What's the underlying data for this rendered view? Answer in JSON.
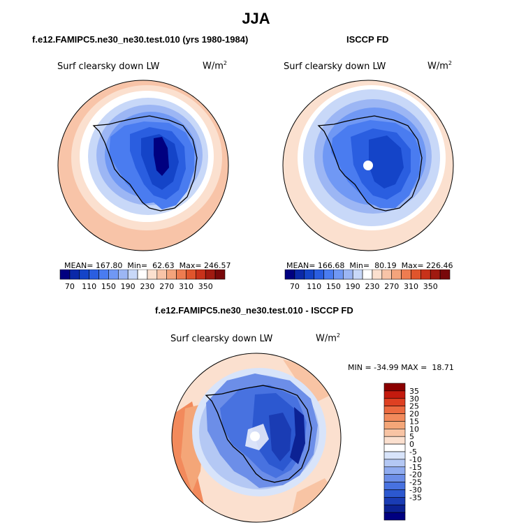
{
  "title": "JJA",
  "panels": [
    {
      "title": "f.e12.FAMIPC5.ne30_ne30.test.010 (yrs 1980-1984)",
      "variable": "Surf clearsky down LW",
      "units_base": "W/m",
      "units_exp": "2",
      "stats": "MEAN= 167.80  Min=  62.63  Max= 246.57",
      "pole_hole": false
    },
    {
      "title": "ISCCP FD",
      "variable": "Surf clearsky down LW",
      "units_base": "W/m",
      "units_exp": "2",
      "stats": "MEAN= 166.68  Min=  80.19  Max= 226.46",
      "pole_hole": true
    },
    {
      "title": "f.e12.FAMIPC5.ne30_ne30.test.010 - ISCCP FD",
      "variable": "Surf clearsky down LW",
      "units_base": "W/m",
      "units_exp": "2",
      "stats": "MIN = -34.99 MAX =  18.71",
      "pole_hole": true
    }
  ],
  "colorbar_abs": {
    "colors": [
      "#000080",
      "#0a28a8",
      "#1444c8",
      "#2a5ee0",
      "#4a7cf0",
      "#7098f4",
      "#9cb6f4",
      "#c8d8f8",
      "#ffffff",
      "#fbe0cf",
      "#f8c4a8",
      "#f4a47c",
      "#ee7c50",
      "#e0552c",
      "#c8321a",
      "#a01a10",
      "#78080a"
    ],
    "labels": [
      "70",
      "110",
      "150",
      "190",
      "230",
      "270",
      "310",
      "350"
    ]
  },
  "colorbar_diff": {
    "colors_top_to_bottom": [
      "#8b0000",
      "#c41a0e",
      "#de4022",
      "#ec6a40",
      "#f28a5c",
      "#f4a678",
      "#f8c4a4",
      "#fbe0cf",
      "#ffffff",
      "#d8e4fa",
      "#b4c8f4",
      "#90acf0",
      "#6c8ee8",
      "#4872e0",
      "#2c58d0",
      "#1a3cb4",
      "#0c2294",
      "#000080"
    ],
    "labels": [
      "35",
      "30",
      "25",
      "20",
      "15",
      "10",
      "5",
      "0",
      "-5",
      "-10",
      "-15",
      "-20",
      "-25",
      "-30",
      "-35"
    ]
  }
}
